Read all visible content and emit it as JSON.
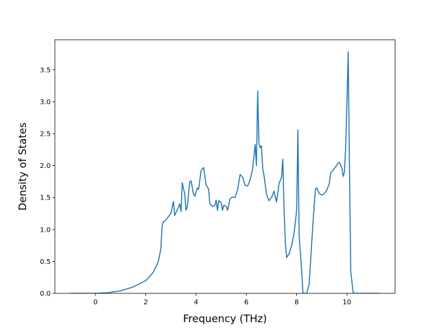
{
  "chart_data": {
    "type": "line",
    "xlabel": "Frequency (THz)",
    "ylabel": "Density of States",
    "x": [
      -1.0,
      0,
      0.5,
      1.0,
      1.5,
      2.0,
      2.3,
      2.5,
      2.6,
      2.65,
      2.7,
      2.8,
      3.0,
      3.1,
      3.15,
      3.3,
      3.35,
      3.4,
      3.45,
      3.55,
      3.6,
      3.65,
      3.75,
      3.8,
      3.9,
      3.95,
      4.05,
      4.1,
      4.2,
      4.3,
      4.4,
      4.5,
      4.55,
      4.65,
      4.75,
      4.8,
      4.85,
      4.9,
      5.0,
      5.05,
      5.1,
      5.2,
      5.25,
      5.35,
      5.45,
      5.55,
      5.65,
      5.75,
      5.85,
      5.95,
      6.05,
      6.15,
      6.25,
      6.35,
      6.4,
      6.45,
      6.5,
      6.55,
      6.6,
      6.65,
      6.7,
      6.8,
      6.9,
      7.0,
      7.1,
      7.2,
      7.3,
      7.4,
      7.45,
      7.5,
      7.55,
      7.6,
      7.7,
      7.8,
      7.9,
      8.0,
      8.05,
      8.1,
      8.2,
      8.25,
      8.4,
      8.5,
      8.6,
      8.7,
      8.75,
      8.8,
      8.9,
      9.0,
      9.1,
      9.2,
      9.3,
      9.35,
      9.45,
      9.55,
      9.65,
      9.7,
      9.8,
      9.85,
      9.9,
      9.95,
      10.0,
      10.05,
      10.1,
      10.15,
      10.25,
      11.3
    ],
    "series": [
      {
        "color": "#1f77b4",
        "values": [
          0,
          0,
          0.01,
          0.04,
          0.1,
          0.2,
          0.33,
          0.5,
          0.7,
          1.05,
          1.12,
          1.15,
          1.25,
          1.44,
          1.22,
          1.35,
          1.4,
          1.28,
          1.73,
          1.55,
          1.3,
          1.35,
          1.75,
          1.76,
          1.55,
          1.52,
          1.65,
          1.63,
          1.92,
          1.97,
          1.7,
          1.63,
          1.4,
          1.36,
          1.38,
          1.46,
          1.3,
          1.45,
          1.42,
          1.3,
          1.38,
          1.36,
          1.3,
          1.48,
          1.51,
          1.5,
          1.62,
          1.86,
          1.82,
          1.69,
          1.68,
          1.78,
          1.95,
          2.33,
          2.0,
          3.17,
          2.35,
          2.28,
          2.31,
          1.95,
          1.85,
          1.55,
          1.45,
          1.5,
          1.6,
          1.43,
          1.72,
          1.82,
          2.1,
          1.3,
          0.8,
          0.56,
          0.62,
          0.75,
          0.95,
          1.3,
          2.56,
          0.9,
          0.35,
          0,
          0,
          0.15,
          0.8,
          1.4,
          1.64,
          1.65,
          1.56,
          1.54,
          1.56,
          1.62,
          1.72,
          1.88,
          1.93,
          1.98,
          2.04,
          2.05,
          1.96,
          1.83,
          1.9,
          2.3,
          3.0,
          3.78,
          2.0,
          0.35,
          0,
          0
        ]
      }
    ],
    "xlim": [
      -1.615,
      11.915
    ],
    "ylim": [
      0,
      3.97
    ],
    "xticks": [
      0,
      2,
      4,
      6,
      8,
      10
    ],
    "yticks": [
      {
        "value": 0,
        "label": "0.0"
      },
      {
        "value": 0.5,
        "label": "0.5"
      },
      {
        "value": 1,
        "label": "1.0"
      },
      {
        "value": 1.5,
        "label": "1.5"
      },
      {
        "value": 2,
        "label": "2.0"
      },
      {
        "value": 2.5,
        "label": "2.5"
      },
      {
        "value": 3,
        "label": "3.0"
      },
      {
        "value": 3.5,
        "label": "3.5"
      }
    ]
  }
}
